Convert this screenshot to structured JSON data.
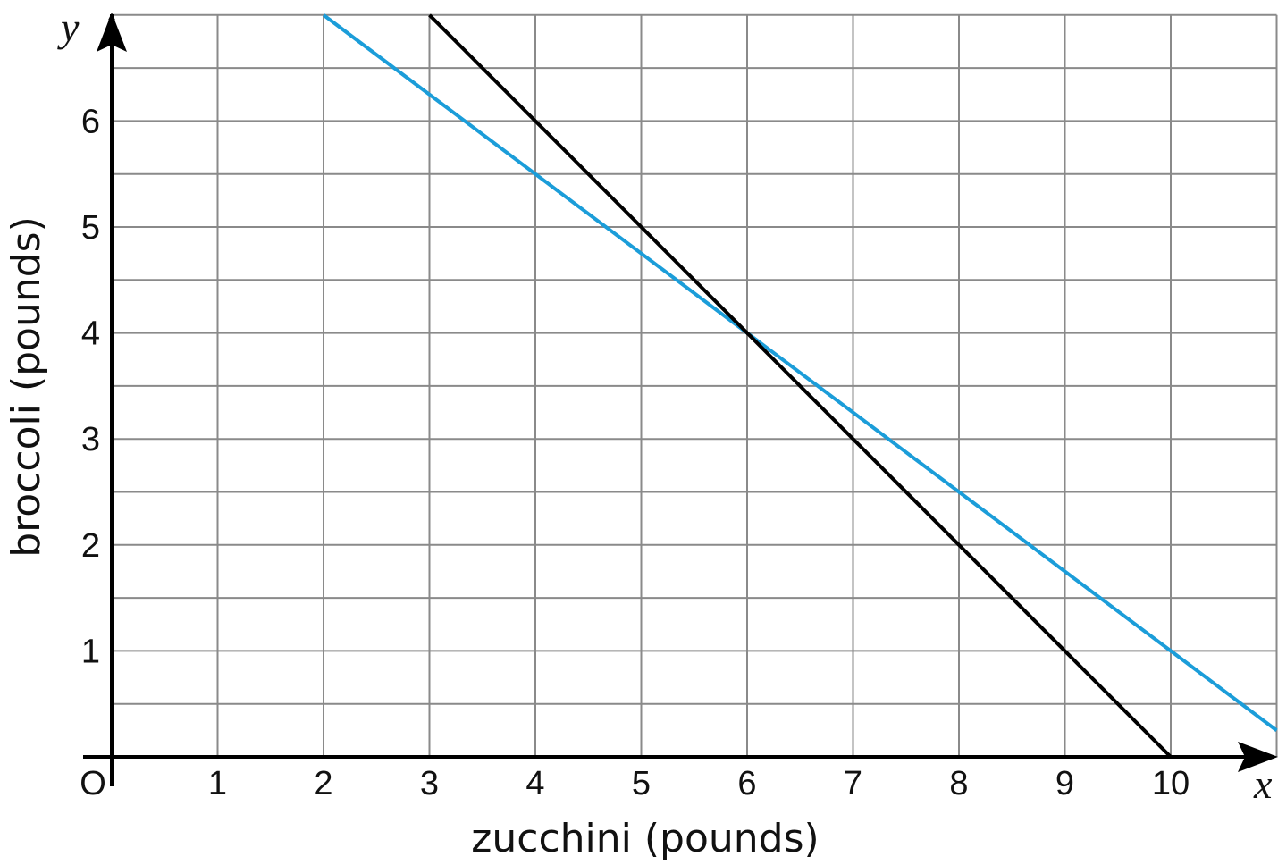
{
  "chart_data": {
    "type": "line",
    "xlabel": "zucchini (pounds)",
    "ylabel": "broccoli (pounds)",
    "x_axis_letter": "x",
    "y_axis_letter": "y",
    "origin_label": "O",
    "xlim": [
      0,
      11
    ],
    "ylim": [
      0,
      7
    ],
    "grid": true,
    "grid_step": {
      "x": 1,
      "y": 0.5
    },
    "x_ticks": [
      "1",
      "2",
      "3",
      "4",
      "5",
      "6",
      "7",
      "8",
      "9",
      "10"
    ],
    "y_ticks": [
      "1",
      "2",
      "3",
      "4",
      "5",
      "6"
    ],
    "series": [
      {
        "color": "#1b9dd9",
        "points": [
          [
            2,
            7
          ],
          [
            6,
            4
          ],
          [
            10,
            1
          ],
          [
            11,
            0.25
          ]
        ]
      },
      {
        "color": "#000000",
        "points": [
          [
            3,
            7
          ],
          [
            6,
            4
          ],
          [
            10,
            0
          ]
        ]
      }
    ]
  }
}
